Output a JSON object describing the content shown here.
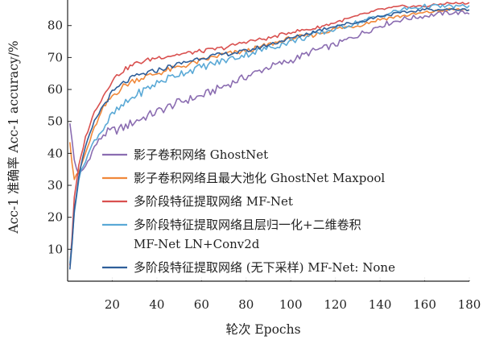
{
  "chart_data": {
    "type": "line",
    "xlabel": "轮次 Epochs",
    "ylabel": "Acc-1 准确率 Acc-1 accuracy/%",
    "xlim": [
      0,
      180
    ],
    "ylim": [
      0,
      88
    ],
    "xticks": [
      20,
      40,
      60,
      80,
      100,
      120,
      140,
      160,
      180
    ],
    "yticks": [
      10,
      20,
      30,
      40,
      50,
      60,
      70,
      80
    ],
    "grid": false,
    "legend_position": "center",
    "series": [
      {
        "name": "影子卷积网络 GhostNet",
        "color": "#8b6db1",
        "x": [
          1,
          2,
          3,
          5,
          8,
          12,
          16,
          20,
          25,
          30,
          40,
          50,
          60,
          70,
          80,
          90,
          100,
          110,
          120,
          130,
          140,
          150,
          160,
          170,
          180
        ],
        "y": [
          49,
          44,
          38,
          33,
          36,
          42,
          46,
          47,
          48,
          50,
          53,
          56,
          58,
          61,
          64,
          67,
          69,
          72,
          74,
          77,
          80,
          82,
          83,
          84,
          84
        ]
      },
      {
        "name": "影子卷积网络且最大池化 GhostNet Maxpool",
        "color": "#f0883a",
        "x": [
          1,
          2,
          3,
          5,
          8,
          12,
          16,
          20,
          25,
          30,
          40,
          50,
          60,
          70,
          80,
          90,
          100,
          110,
          120,
          130,
          140,
          150,
          160,
          170,
          180
        ],
        "y": [
          44,
          37,
          32,
          34,
          40,
          48,
          54,
          58,
          61,
          63,
          65,
          67,
          69,
          71,
          72,
          74,
          76,
          77,
          79,
          80,
          82,
          83,
          84,
          85,
          85
        ]
      },
      {
        "name": "多阶段特征提取网络 MF-Net",
        "color": "#d9504f",
        "x": [
          1,
          2,
          3,
          5,
          8,
          12,
          16,
          20,
          25,
          30,
          40,
          50,
          60,
          70,
          80,
          90,
          100,
          110,
          120,
          130,
          140,
          150,
          160,
          170,
          180
        ],
        "y": [
          5,
          14,
          26,
          36,
          45,
          53,
          58,
          63,
          66,
          68,
          70,
          71,
          72,
          73,
          75,
          76,
          78,
          79,
          81,
          83,
          85,
          86,
          86,
          87,
          87
        ]
      },
      {
        "name": "多阶段特征提取网络且层归一化+二维卷积 MF-Net LN+Conv2d",
        "color": "#5aa9d6",
        "x": [
          1,
          2,
          3,
          5,
          8,
          12,
          16,
          20,
          25,
          30,
          40,
          50,
          60,
          70,
          80,
          90,
          100,
          110,
          120,
          130,
          140,
          150,
          160,
          170,
          180
        ],
        "y": [
          5,
          12,
          22,
          32,
          38,
          44,
          48,
          52,
          55,
          58,
          62,
          65,
          67,
          69,
          71,
          73,
          75,
          77,
          79,
          81,
          83,
          85,
          86,
          86,
          86
        ]
      },
      {
        "name": "多阶段特征提取网络 (无下采样) MF-Net: None",
        "color": "#2f5f9a",
        "x": [
          1,
          2,
          3,
          5,
          8,
          12,
          16,
          20,
          25,
          30,
          40,
          50,
          60,
          70,
          80,
          90,
          100,
          110,
          120,
          130,
          140,
          150,
          160,
          170,
          180
        ],
        "y": [
          4,
          12,
          22,
          33,
          42,
          50,
          55,
          59,
          62,
          64,
          66,
          68,
          70,
          71,
          72,
          74,
          76,
          78,
          80,
          81,
          83,
          84,
          85,
          85,
          85
        ]
      }
    ],
    "legend_entries": [
      {
        "lines": [
          "影子卷积网络 GhostNet"
        ],
        "series_index": 0
      },
      {
        "lines": [
          "影子卷积网络且最大池化 GhostNet Maxpool"
        ],
        "series_index": 1
      },
      {
        "lines": [
          "多阶段特征提取网络 MF-Net"
        ],
        "series_index": 2
      },
      {
        "lines": [
          "多阶段特征提取网络且层归一化+二维卷积",
          "MF-Net LN+Conv2d"
        ],
        "series_index": 3
      },
      {
        "lines": [
          "多阶段特征提取网络 (无下采样) MF-Net: None"
        ],
        "series_index": 4
      }
    ]
  }
}
